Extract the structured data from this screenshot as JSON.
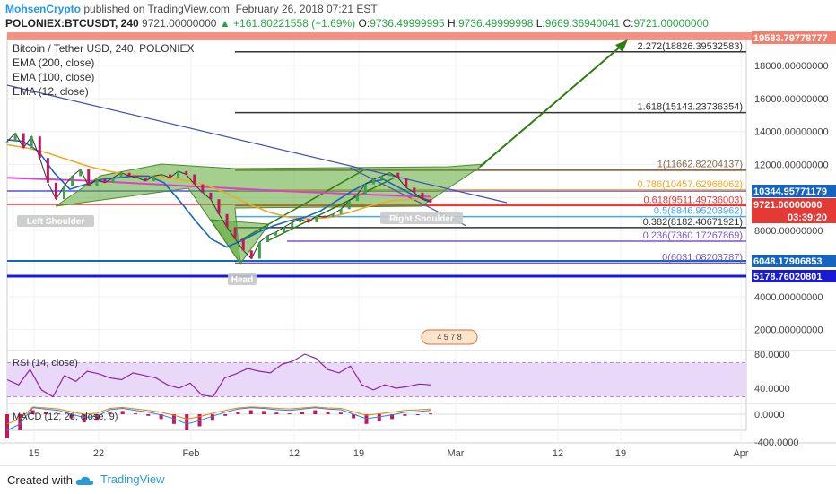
{
  "header": {
    "author": "MohsenCrypto",
    "published_text": "published on TradingView.com, February 26, 2018 07:21 EST",
    "symbol": "POLONIEX:BTCUSDT, 240",
    "price": "9721.00000000",
    "change": "+161.80221558 (+1.69%)",
    "o_label": "O:",
    "o_value": "9736.49999995",
    "h_label": "H:",
    "h_value": "9736.49999998",
    "l_label": "L:",
    "l_value": "9669.36940041",
    "c_label": "C:",
    "c_value": "9721.00000000"
  },
  "legend": {
    "title": "Bitcoin / Tether USD, 240, POLONIEX",
    "ema200": "EMA (200, close)",
    "ema100": "EMA (100, close)",
    "ema12": "EMA (12, close)"
  },
  "footer": {
    "created_with": "Created with",
    "brand": "TradingView"
  },
  "colors": {
    "ema200": "#e040c8",
    "ema100": "#f5a623",
    "ema12": "#1565c0",
    "price": "#333333",
    "pattern_fill": "#5aa832",
    "arrow": "#2e7d12",
    "fib_1": "#8b6b4a",
    "fib_0786": "#f5a623",
    "fib_0618": "#e53935",
    "fib_05": "#42a5f5",
    "fib_0382": "#555555",
    "fib_0236": "#7e57c2",
    "fib_0": "#7e57c2",
    "blue_line": "#1a1ad6",
    "rsi_band": "#e9d8f7",
    "macd_hist": "#c2185b"
  },
  "chart_data": [
    {
      "type": "line",
      "name": "price",
      "ylim": [
        0,
        20000
      ],
      "x_ticks": [
        "15",
        "22",
        "Feb",
        "12",
        "19",
        "Mar",
        "12",
        "19",
        "Apr"
      ],
      "y_ticks": [
        "18000.00000000",
        "16000.00000000",
        "14000.00000000",
        "12000.00000000",
        "8000.00000000",
        "6000.00000000",
        "4000.00000000",
        "2000.00000000"
      ],
      "price_badges": [
        {
          "value": "19583.79778777",
          "color": "#f08070"
        },
        {
          "value": "10344.95771179",
          "color": "#1565c0"
        },
        {
          "value": "9721.00000000",
          "color": "#e53935"
        },
        {
          "value": "03:39:20",
          "color": "#e53935"
        },
        {
          "value": "6048.17906853",
          "color": "#1565c0"
        },
        {
          "value": "5178.76020801",
          "color": "#1a1ad6"
        }
      ],
      "fib_levels": [
        {
          "label": "2.272(18826.39532583)",
          "value": 18826.4
        },
        {
          "label": "1.618(15143.23736354)",
          "value": 15143.2
        },
        {
          "label": "1(11662.82204137)",
          "value": 11662.8
        },
        {
          "label": "0.786(10457.62968062)",
          "value": 10457.6
        },
        {
          "label": "0.618(9511.49736003)",
          "value": 9511.5
        },
        {
          "label": "0.5(8846.95203962)",
          "value": 8847.0
        },
        {
          "label": "0.382(8182.40671921)",
          "value": 8182.4
        },
        {
          "label": "0.236(7360.17267869)",
          "value": 7360.2
        },
        {
          "label": "0(6031.08203787)",
          "value": 6031.1
        }
      ],
      "annotations": [
        "Left Shoulder",
        "Head",
        "Right Shoulder"
      ],
      "event_badge": "4 5 7 8",
      "series": [
        {
          "name": "close",
          "values": [
            13400,
            13900,
            13000,
            13700,
            12400,
            10900,
            9900,
            10700,
            11300,
            11700,
            10700,
            11100,
            10900,
            11200,
            11500,
            11300,
            11200,
            11000,
            11300,
            11400,
            11200,
            11600,
            11400,
            10800,
            10300,
            9900,
            9000,
            8200,
            7500,
            6800,
            6300,
            7300,
            7700,
            7900,
            8200,
            8500,
            8700,
            8500,
            8900,
            8800,
            9000,
            9300,
            9800,
            10200,
            10800,
            11100,
            11300,
            11500,
            11200,
            10600,
            10300,
            9900,
            9721
          ]
        },
        {
          "name": "EMA (200, close)",
          "values": [
            11200,
            11150,
            11100,
            11050,
            11000,
            10920,
            10850,
            10780,
            10700,
            10630,
            10560,
            10490,
            10420,
            10360,
            10300,
            10240,
            10190,
            10140,
            10090,
            10050
          ]
        },
        {
          "name": "EMA (100, close)",
          "values": [
            13200,
            13000,
            12700,
            12300,
            11900,
            11600,
            11400,
            11300,
            11200,
            11000,
            10700,
            10200,
            9600,
            9100,
            8800,
            8700,
            8800,
            9100,
            9500,
            9800,
            9900,
            9950
          ]
        },
        {
          "name": "EMA (12, close)",
          "values": [
            13500,
            13400,
            12800,
            11500,
            10500,
            10800,
            11100,
            11200,
            11300,
            11300,
            10900,
            9800,
            8600,
            7500,
            7000,
            7400,
            7900,
            8300,
            8600,
            8800,
            9200,
            9800,
            10400,
            10900,
            11100,
            10600,
            10100,
            9800
          ]
        }
      ]
    },
    {
      "type": "line",
      "name": "RSI",
      "title": "RSI (14, close)",
      "ylim": [
        20,
        90
      ],
      "y_ticks": [
        "80.0000",
        "40.0000"
      ],
      "band": [
        30,
        70
      ],
      "values": [
        50,
        44,
        62,
        38,
        30,
        55,
        48,
        60,
        57,
        52,
        50,
        58,
        55,
        52,
        44,
        40,
        46,
        32,
        30,
        52,
        57,
        63,
        60,
        58,
        68,
        72,
        80,
        75,
        62,
        58,
        66,
        44,
        38,
        44,
        40,
        42,
        45,
        44
      ]
    },
    {
      "type": "bar",
      "name": "MACD",
      "title": "MACD (12, 26, close, 9)",
      "y_ticks": [
        "0.0000",
        "-400.0000"
      ],
      "values": [
        -300,
        -200,
        50,
        30,
        10,
        -50,
        -100,
        -80,
        20,
        40,
        10,
        -20,
        -60,
        -120,
        -200,
        -150,
        -80,
        -20,
        30,
        50,
        40,
        20,
        10,
        30,
        50,
        30,
        20,
        -50,
        -120,
        -90,
        -60,
        -20,
        -10,
        10
      ]
    }
  ]
}
